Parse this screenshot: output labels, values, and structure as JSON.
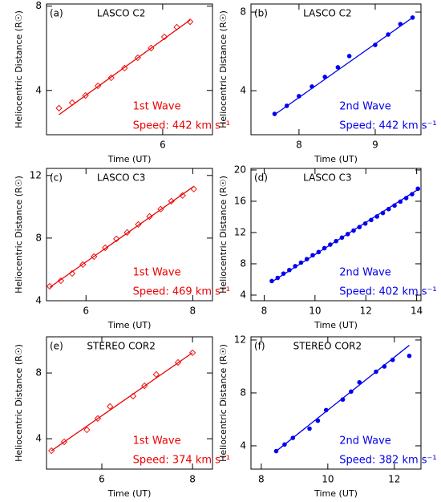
{
  "chart_data": [
    {
      "type": "scatter",
      "panel": "(a)",
      "instrument": "LASCO C2",
      "wave": "1st Wave",
      "speed": "Speed: 442 km s⁻¹",
      "xlabel": "Time (UT)",
      "ylabel": "Heliocentric Distance (R☉)",
      "color": "#ee0000",
      "marker": "diamond",
      "xlim": [
        4.6,
        6.6
      ],
      "ylim": [
        1.9,
        8.1
      ],
      "xticks": [
        6
      ],
      "yticks": [
        4,
        8
      ],
      "x": [
        4.75,
        4.91,
        5.07,
        5.22,
        5.38,
        5.54,
        5.7,
        5.86,
        6.02,
        6.17,
        6.33
      ],
      "values": [
        3.16,
        3.42,
        3.76,
        4.22,
        4.6,
        5.06,
        5.55,
        6.01,
        6.54,
        7.0,
        7.26
      ],
      "fit": {
        "x": [
          4.75,
          6.33
        ],
        "values": [
          2.85,
          7.34
        ]
      }
    },
    {
      "type": "scatter",
      "panel": "(b)",
      "instrument": "LASCO C2",
      "wave": "2nd Wave",
      "speed": "Speed: 442 km s⁻¹",
      "xlabel": "Time (UT)",
      "ylabel": "Heliocentric Distance (R☉)",
      "color": "#0000ee",
      "marker": "circle",
      "xlim": [
        7.37,
        9.6
      ],
      "ylim": [
        1.76,
        8.41
      ],
      "xticks": [
        8,
        9
      ],
      "yticks": [
        4,
        8
      ],
      "x": [
        7.68,
        7.84,
        8.0,
        8.17,
        8.34,
        8.51,
        8.66,
        9.0,
        9.17,
        9.33,
        9.49
      ],
      "values": [
        2.82,
        3.23,
        3.72,
        4.21,
        4.7,
        5.19,
        5.76,
        6.33,
        6.86,
        7.39,
        7.72
      ],
      "fit": {
        "x": [
          7.68,
          9.49
        ],
        "values": [
          2.78,
          7.72
        ]
      }
    },
    {
      "type": "scatter",
      "panel": "(c)",
      "instrument": "LASCO C3",
      "wave": "1st Wave",
      "speed": "Speed: 469 km s⁻¹",
      "xlabel": "Time (UT)",
      "ylabel": "Heliocentric Distance (R☉)",
      "color": "#ee0000",
      "marker": "diamond",
      "xlim": [
        5.26,
        8.37
      ],
      "ylim": [
        4,
        12.45
      ],
      "xticks": [
        6,
        8
      ],
      "yticks": [
        4,
        8,
        12
      ],
      "x": [
        5.32,
        5.53,
        5.74,
        5.94,
        6.15,
        6.36,
        6.57,
        6.77,
        6.98,
        7.19,
        7.4,
        7.6,
        7.81,
        8.02
      ],
      "values": [
        4.92,
        5.28,
        5.74,
        6.31,
        6.82,
        7.38,
        7.95,
        8.36,
        8.87,
        9.38,
        9.85,
        10.36,
        10.72,
        11.13
      ],
      "fit": {
        "x": [
          5.32,
          8.02
        ],
        "values": [
          4.85,
          11.3
        ]
      }
    },
    {
      "type": "scatter",
      "panel": "(d)",
      "instrument": "LASCO C3",
      "wave": "2nd Wave",
      "speed": "Speed: 402 km s⁻¹",
      "xlabel": "Time (UT)",
      "ylabel": "Heliocentric Distance (R☉)",
      "color": "#0000ee",
      "marker": "circle",
      "xlim": [
        7.48,
        14.17
      ],
      "ylim": [
        3.28,
        20.2
      ],
      "xticks": [
        8,
        10,
        12,
        14
      ],
      "yticks": [
        4,
        8,
        12,
        16,
        20
      ],
      "x": [
        8.3,
        8.53,
        8.76,
        8.99,
        9.22,
        9.45,
        9.68,
        9.91,
        10.14,
        10.37,
        10.6,
        10.83,
        11.06,
        11.29,
        11.52,
        11.75,
        11.98,
        12.21,
        12.44,
        12.67,
        12.9,
        13.13,
        13.36,
        13.59,
        13.82,
        14.05
      ],
      "values": [
        5.8,
        6.2,
        6.75,
        7.2,
        7.7,
        8.15,
        8.6,
        9.1,
        9.5,
        10.0,
        10.45,
        10.9,
        11.35,
        11.8,
        12.25,
        12.7,
        13.15,
        13.6,
        14.05,
        14.5,
        15.0,
        15.45,
        15.95,
        16.4,
        16.9,
        17.6
      ],
      "fit": {
        "x": [
          8.3,
          14.1
        ],
        "values": [
          5.7,
          17.6
        ]
      }
    },
    {
      "type": "scatter",
      "panel": "(e)",
      "instrument": "STEREO COR2",
      "wave": "1st Wave",
      "speed": "Speed: 374 km s⁻¹",
      "xlabel": "Time (UT)",
      "ylabel": "Heliocentric Distance (R☉)",
      "color": "#ee0000",
      "marker": "diamond",
      "xlim": [
        4.78,
        8.44
      ],
      "ylim": [
        2.15,
        10.2
      ],
      "xticks": [
        6,
        8
      ],
      "yticks": [
        4,
        8
      ],
      "x": [
        4.89,
        5.17,
        5.67,
        5.91,
        6.18,
        6.69,
        6.94,
        7.2,
        7.68,
        8.0
      ],
      "values": [
        3.27,
        3.81,
        4.54,
        5.23,
        5.96,
        6.59,
        7.22,
        7.91,
        8.64,
        9.23
      ],
      "fit": {
        "x": [
          4.89,
          8.0
        ],
        "values": [
          3.27,
          9.23
        ]
      }
    },
    {
      "type": "scatter",
      "panel": "(f)",
      "instrument": "STEREO COR2",
      "wave": "2nd Wave",
      "speed": "Speed: 382 km s⁻¹",
      "xlabel": "Time (UT)",
      "ylabel": "Heliocentric Distance (R☉)",
      "color": "#0000ee",
      "marker": "circle",
      "xlim": [
        7.69,
        12.8
      ],
      "ylim": [
        2.24,
        12.24
      ],
      "xticks": [
        8,
        10,
        12
      ],
      "yticks": [
        4,
        8,
        12
      ],
      "x": [
        8.45,
        8.7,
        8.95,
        9.45,
        9.7,
        9.95,
        10.45,
        10.7,
        10.95,
        11.45,
        11.7,
        11.95,
        12.45
      ],
      "values": [
        3.6,
        4.1,
        4.6,
        5.3,
        5.9,
        6.7,
        7.5,
        8.1,
        8.8,
        9.6,
        10.0,
        10.5,
        10.8
      ],
      "fit": {
        "x": [
          8.45,
          12.45
        ],
        "values": [
          3.6,
          11.6
        ]
      }
    }
  ]
}
